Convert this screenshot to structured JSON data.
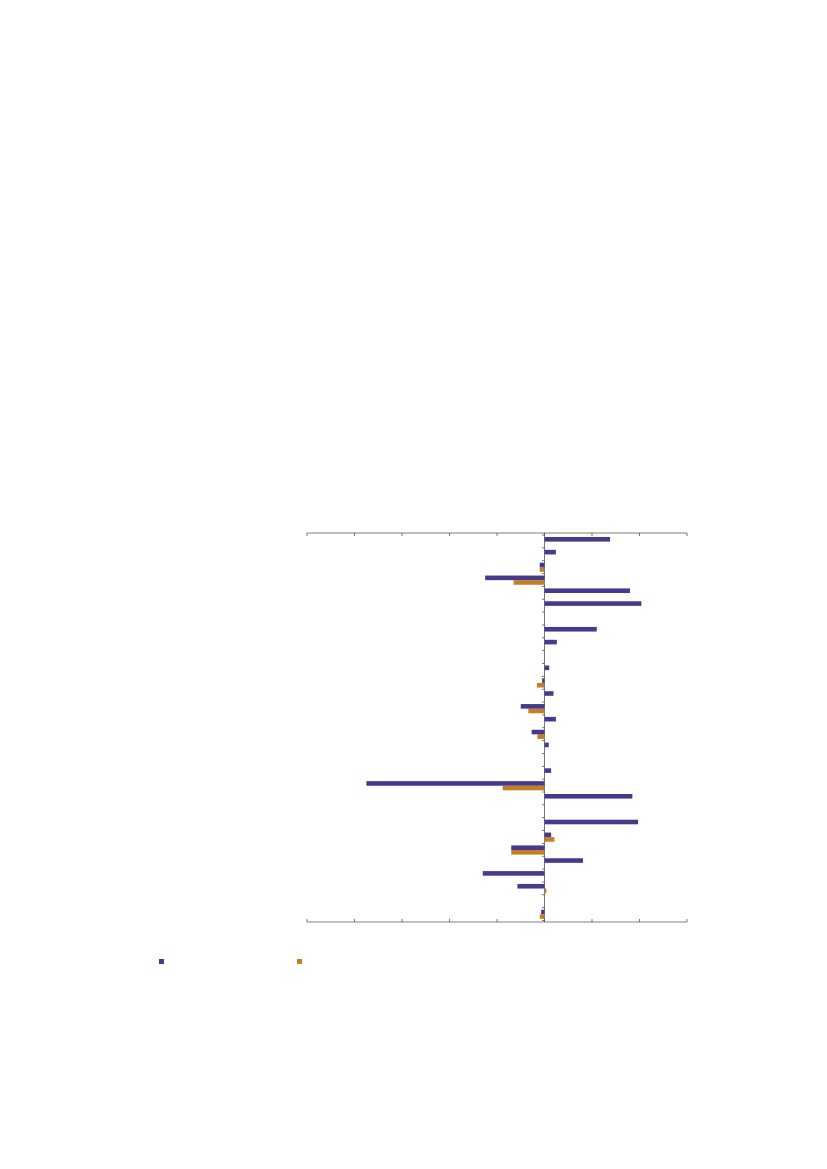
{
  "colors": {
    "series_1": "#463a8c",
    "series_2": "#c47e25",
    "axis": "#555555"
  },
  "legend": {
    "items": [
      {
        "color": "#463a8c",
        "label": ""
      },
      {
        "color": "#c47e25",
        "label": ""
      }
    ]
  },
  "chart_data": {
    "type": "bar",
    "orientation": "horizontal",
    "title": "",
    "xlabel": "",
    "ylabel": "",
    "xlim": [
      -5,
      3
    ],
    "grid": false,
    "legend_position": "bottom-left",
    "categories": [
      "",
      "",
      "",
      "",
      "",
      "",
      "",
      "",
      "",
      "",
      "",
      "",
      "",
      "",
      "",
      "",
      "",
      "",
      "",
      "",
      "",
      "",
      "",
      "",
      "",
      "",
      "",
      "",
      "",
      ""
    ],
    "series": [
      {
        "values": [
          1.38,
          0.24,
          -0.1,
          -1.25,
          1.8,
          2.04,
          0,
          1.1,
          0.26,
          0,
          0.1,
          -0.05,
          0.19,
          -0.5,
          0.24,
          -0.27,
          0.09,
          0,
          0.14,
          -3.75,
          1.85,
          0,
          1.97,
          0.14,
          -0.7,
          0.81,
          -1.3,
          -0.57,
          0,
          -0.07
        ]
      },
      {
        "values": [
          0,
          0,
          -0.1,
          -0.65,
          0,
          0,
          0,
          0,
          0,
          0,
          0,
          -0.16,
          0,
          -0.34,
          0,
          -0.15,
          0,
          0,
          0,
          -0.88,
          0,
          0,
          0,
          0.21,
          -0.7,
          0,
          0,
          0.04,
          0,
          -0.1
        ]
      }
    ]
  }
}
